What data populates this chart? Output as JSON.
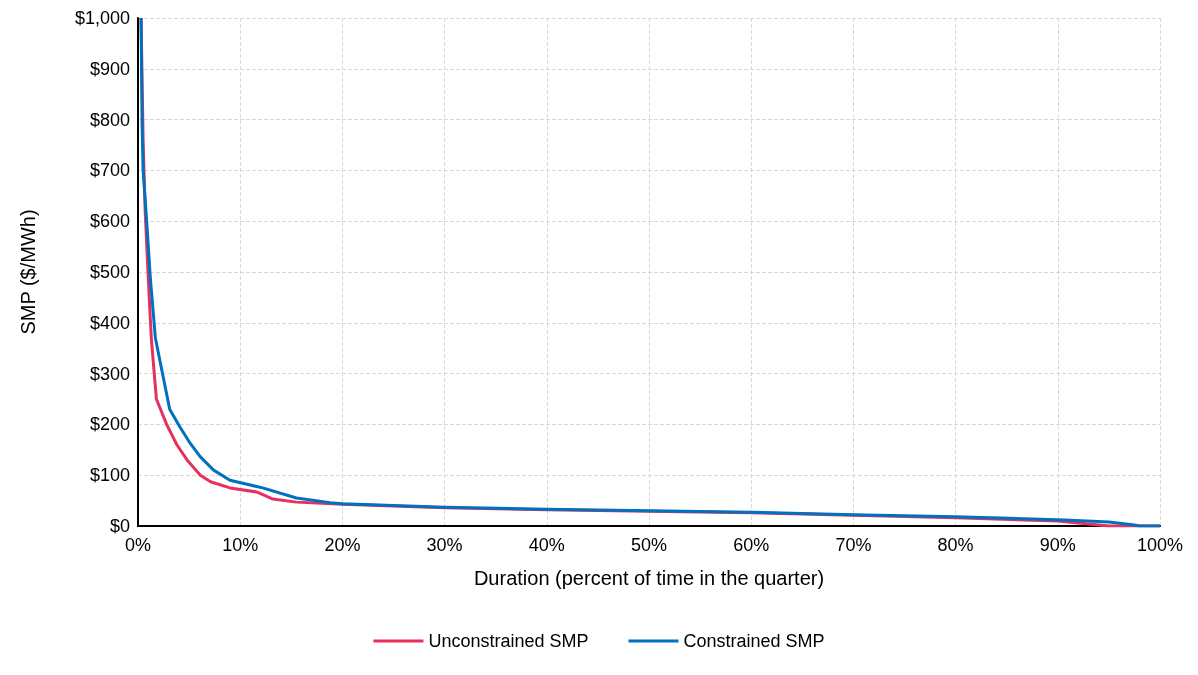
{
  "chart_data": {
    "type": "line",
    "xlabel": "Duration (percent of time in the quarter)",
    "ylabel": "SMP ($/MWh)",
    "xlim": [
      0,
      100
    ],
    "ylim": [
      0,
      1000
    ],
    "xticks": [
      {
        "value": 0,
        "label": "0%"
      },
      {
        "value": 10,
        "label": "10%"
      },
      {
        "value": 20,
        "label": "20%"
      },
      {
        "value": 30,
        "label": "30%"
      },
      {
        "value": 40,
        "label": "40%"
      },
      {
        "value": 50,
        "label": "50%"
      },
      {
        "value": 60,
        "label": "60%"
      },
      {
        "value": 70,
        "label": "70%"
      },
      {
        "value": 80,
        "label": "80%"
      },
      {
        "value": 90,
        "label": "90%"
      },
      {
        "value": 100,
        "label": "100%"
      }
    ],
    "yticks": [
      {
        "value": 0,
        "label": "$0"
      },
      {
        "value": 100,
        "label": "$100"
      },
      {
        "value": 200,
        "label": "$200"
      },
      {
        "value": 300,
        "label": "$300"
      },
      {
        "value": 400,
        "label": "$400"
      },
      {
        "value": 500,
        "label": "$500"
      },
      {
        "value": 600,
        "label": "$600"
      },
      {
        "value": 700,
        "label": "$700"
      },
      {
        "value": 800,
        "label": "$800"
      },
      {
        "value": 900,
        "label": "$900"
      },
      {
        "value": 1000,
        "label": "$1,000"
      }
    ],
    "grid": true,
    "legend": "bottom",
    "marker": "none",
    "line_style": "solid",
    "series": [
      {
        "name": "Unconstrained SMP",
        "color": "#e8305f",
        "x": [
          0.3,
          0.5,
          0.7,
          1.0,
          1.3,
          1.8,
          2.8,
          3.8,
          4.8,
          6.1,
          7.1,
          9.0,
          11.6,
          13.2,
          15.5,
          20,
          30,
          40,
          50,
          60,
          70,
          80,
          90,
          94.5,
          95,
          100
        ],
        "values": [
          1000,
          760,
          620,
          490,
          370,
          250,
          200,
          160,
          130,
          100,
          87,
          75,
          67,
          53,
          47,
          43,
          36,
          32,
          29,
          26,
          21,
          16,
          10,
          1,
          0,
          0
        ]
      },
      {
        "name": "Constrained SMP",
        "color": "#0070c0",
        "x": [
          0.3,
          0.4,
          0.5,
          0.85,
          1.2,
          1.7,
          2.5,
          3.1,
          4.1,
          5.1,
          6.1,
          7.4,
          9.0,
          12.2,
          15.5,
          18.8,
          20,
          30,
          40,
          50,
          60,
          70,
          80,
          90.7,
          95,
          97.5,
          98,
          100
        ],
        "values": [
          1000,
          790,
          700,
          600,
          490,
          370,
          290,
          230,
          195,
          163,
          136,
          110,
          90,
          75,
          55,
          46,
          44,
          37,
          33,
          30,
          27,
          22,
          18,
          12,
          8,
          2,
          0,
          0
        ]
      }
    ]
  }
}
